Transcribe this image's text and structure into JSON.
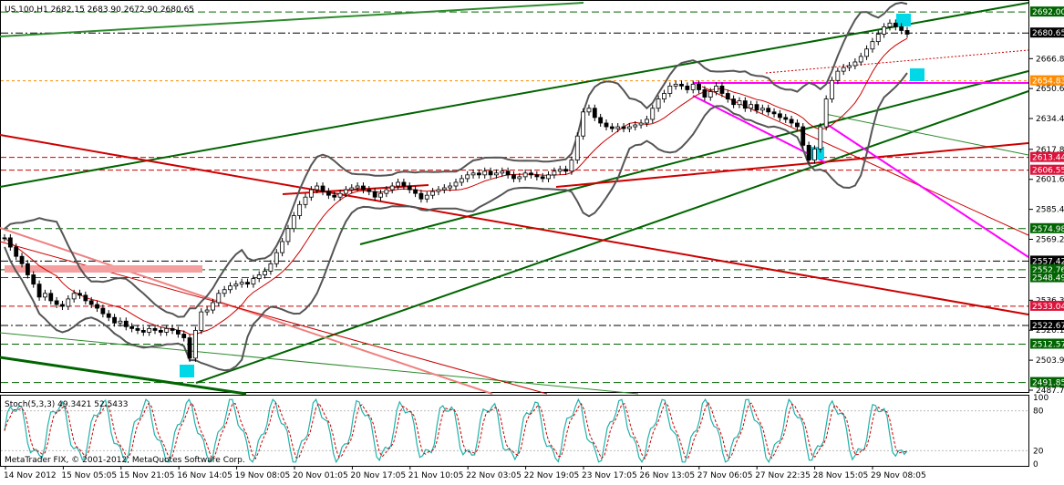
{
  "header": {
    "symbol": "US.100,H1",
    "ohlc": "2682.15 2683.90 2672.90 2680.65"
  },
  "stoch_label": "Stoch(5,3,3) 49.3421 52.5433",
  "copyright": "MetaTrader FIX, © 2001-2012, MetaQuotes Software Corp.",
  "chart_data": {
    "type": "candlestick",
    "price_axis_ticks": [
      "2692.00",
      "2680.65",
      "2666.80",
      "2654.83",
      "2650.65",
      "2634.45",
      "2617.80",
      "2613.44",
      "2606.55",
      "2601.60",
      "2585.40",
      "2574.98",
      "2569.20",
      "2557.42",
      "2552.76",
      "2548.49",
      "2536.30",
      "2533.04",
      "2522.67",
      "2520.10",
      "2512.57",
      "2503.90",
      "2491.85",
      "2487.70"
    ],
    "price_plain_ticks": [
      "2666.80",
      "2650.65",
      "2634.45",
      "2617.80",
      "2601.60",
      "2585.40",
      "2569.20",
      "2536.30",
      "2520.10",
      "2503.90",
      "2487.70"
    ],
    "price_ylim": [
      2487.7,
      2697.0
    ],
    "level_labels": [
      {
        "value": "2692.00",
        "price": 2692.0,
        "bg": "#006400",
        "fg": "#ffffff"
      },
      {
        "value": "2680.65",
        "price": 2680.65,
        "bg": "#000000",
        "fg": "#ffffff"
      },
      {
        "value": "2654.83",
        "price": 2654.83,
        "bg": "#ff8c00",
        "fg": "#ffffff"
      },
      {
        "value": "2613.44",
        "price": 2613.44,
        "bg": "#dc143c",
        "fg": "#ffffff"
      },
      {
        "value": "2606.55",
        "price": 2606.55,
        "bg": "#dc143c",
        "fg": "#ffffff"
      },
      {
        "value": "2574.98",
        "price": 2574.98,
        "bg": "#006400",
        "fg": "#ffffff"
      },
      {
        "value": "2557.42",
        "price": 2557.42,
        "bg": "#000000",
        "fg": "#ffffff"
      },
      {
        "value": "2552.76",
        "price": 2552.76,
        "bg": "#006400",
        "fg": "#ffffff"
      },
      {
        "value": "2548.49",
        "price": 2548.49,
        "bg": "#006400",
        "fg": "#ffffff"
      },
      {
        "value": "2533.04",
        "price": 2533.04,
        "bg": "#dc143c",
        "fg": "#ffffff"
      },
      {
        "value": "2522.67",
        "price": 2522.67,
        "bg": "#000000",
        "fg": "#ffffff"
      },
      {
        "value": "2512.57",
        "price": 2512.57,
        "bg": "#006400",
        "fg": "#ffffff"
      },
      {
        "value": "2491.85",
        "price": 2491.85,
        "bg": "#006400",
        "fg": "#ffffff"
      }
    ],
    "x_labels": [
      "14 Nov 2012",
      "15 Nov 05:05",
      "15 Nov 21:05",
      "16 Nov 14:05",
      "19 Nov 08:05",
      "20 Nov 01:05",
      "20 Nov 17:05",
      "21 Nov 10:05",
      "22 Nov 03:05",
      "22 Nov 19:05",
      "23 Nov 17:05",
      "26 Nov 13:05",
      "27 Nov 06:05",
      "27 Nov 22:35",
      "28 Nov 15:05",
      "29 Nov 08:05"
    ],
    "close_path": [
      2570,
      2565,
      2560,
      2556,
      2550,
      2545,
      2538,
      2540,
      2536,
      2534,
      2533,
      2537,
      2540,
      2539,
      2536,
      2534,
      2532,
      2529,
      2527,
      2524,
      2525,
      2522,
      2521,
      2520,
      2519,
      2521,
      2520,
      2519,
      2521,
      2520,
      2518,
      2516,
      2505,
      2520,
      2530,
      2531,
      2535,
      2540,
      2542,
      2544,
      2545,
      2546,
      2545,
      2548,
      2550,
      2552,
      2556,
      2562,
      2568,
      2575,
      2582,
      2588,
      2592,
      2596,
      2598,
      2595,
      2593,
      2592,
      2594,
      2596,
      2597,
      2598,
      2596,
      2595,
      2592,
      2594,
      2596,
      2598,
      2600,
      2598,
      2596,
      2594,
      2591,
      2593,
      2595,
      2596,
      2597,
      2598,
      2600,
      2602,
      2604,
      2605,
      2604,
      2606,
      2604,
      2605,
      2606,
      2604,
      2602,
      2603,
      2605,
      2604,
      2603,
      2602,
      2604,
      2606,
      2607,
      2606,
      2612,
      2625,
      2638,
      2640,
      2635,
      2632,
      2630,
      2629,
      2630,
      2629,
      2630,
      2631,
      2632,
      2634,
      2640,
      2645,
      2648,
      2652,
      2653,
      2652,
      2650,
      2653,
      2650,
      2646,
      2649,
      2652,
      2648,
      2645,
      2642,
      2644,
      2640,
      2642,
      2639,
      2640,
      2638,
      2637,
      2635,
      2634,
      2632,
      2630,
      2620,
      2612,
      2618,
      2630,
      2645,
      2655,
      2660,
      2662,
      2663,
      2665,
      2668,
      2672,
      2676,
      2680,
      2684,
      2686,
      2684,
      2682,
      2680
    ],
    "stoch_ylim": [
      0,
      100
    ],
    "stoch_levels": [
      80,
      20
    ],
    "stoch_axis_labels": [
      "100",
      "80",
      "20",
      "0"
    ]
  }
}
